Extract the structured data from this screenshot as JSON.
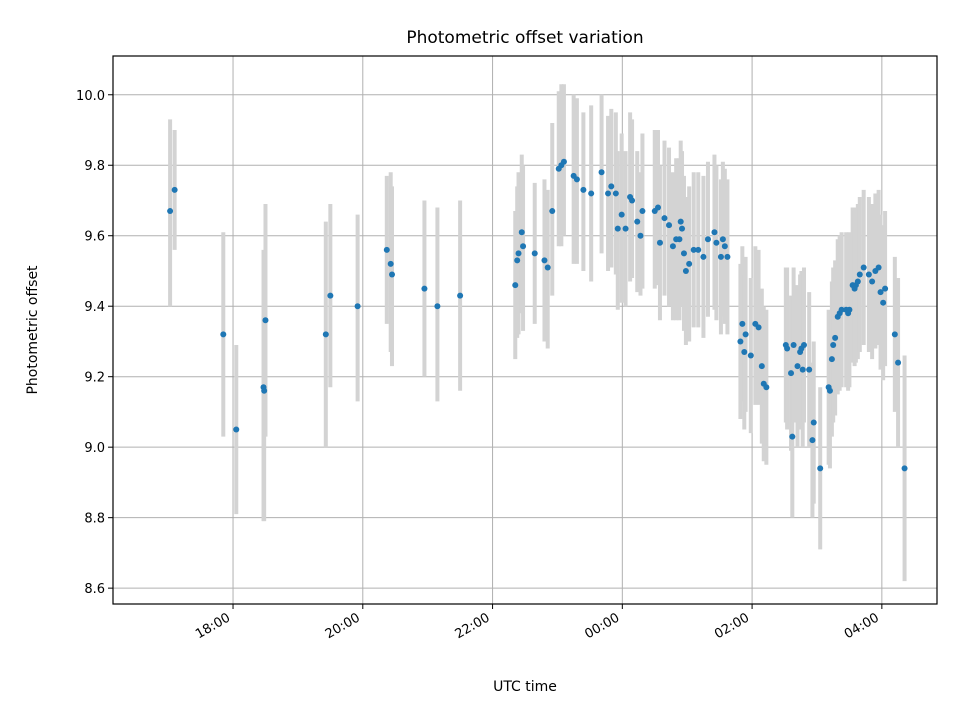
{
  "chart_data": {
    "type": "scatter",
    "title": "Photometric offset variation",
    "xlabel": "UTC time",
    "ylabel": "Photometric offset",
    "x_unit": "UTC, hours from 18:00 (values past 24 are after midnight)",
    "xlim": [
      16.15,
      28.85
    ],
    "ylim": [
      8.555,
      10.11
    ],
    "grid": true,
    "point_color": "#1f77b4",
    "errorbar_color": "#d3d3d3",
    "xticks": [
      {
        "value": 18,
        "label": "18:00"
      },
      {
        "value": 20,
        "label": "20:00"
      },
      {
        "value": 22,
        "label": "22:00"
      },
      {
        "value": 24,
        "label": "00:00"
      },
      {
        "value": 26,
        "label": "02:00"
      },
      {
        "value": 28,
        "label": "04:00"
      }
    ],
    "yticks": [
      {
        "value": 8.6,
        "label": "8.6"
      },
      {
        "value": 8.8,
        "label": "8.8"
      },
      {
        "value": 9.0,
        "label": "9.0"
      },
      {
        "value": 9.2,
        "label": "9.2"
      },
      {
        "value": 9.4,
        "label": "9.4"
      },
      {
        "value": 9.6,
        "label": "9.6"
      },
      {
        "value": 9.8,
        "label": "9.8"
      },
      {
        "value": 10.0,
        "label": "10.0"
      }
    ],
    "points": [
      [
        17.03,
        9.67,
        9.4,
        9.93
      ],
      [
        17.1,
        9.73,
        9.56,
        9.9
      ],
      [
        17.85,
        9.32,
        9.03,
        9.61
      ],
      [
        18.05,
        9.05,
        8.81,
        9.29
      ],
      [
        18.47,
        9.17,
        8.79,
        9.56
      ],
      [
        18.48,
        9.16,
        8.79,
        9.53
      ],
      [
        18.5,
        9.36,
        9.03,
        9.69
      ],
      [
        19.43,
        9.32,
        9.0,
        9.64
      ],
      [
        19.5,
        9.43,
        9.17,
        9.69
      ],
      [
        19.92,
        9.4,
        9.13,
        9.66
      ],
      [
        20.37,
        9.56,
        9.35,
        9.77
      ],
      [
        20.43,
        9.52,
        9.27,
        9.78
      ],
      [
        20.45,
        9.49,
        9.23,
        9.74
      ],
      [
        20.95,
        9.45,
        9.2,
        9.7
      ],
      [
        21.15,
        9.4,
        9.13,
        9.68
      ],
      [
        21.5,
        9.43,
        9.16,
        9.7
      ],
      [
        22.35,
        9.46,
        9.25,
        9.67
      ],
      [
        22.38,
        9.53,
        9.31,
        9.74
      ],
      [
        22.4,
        9.55,
        9.32,
        9.78
      ],
      [
        22.45,
        9.61,
        9.38,
        9.83
      ],
      [
        22.47,
        9.57,
        9.33,
        9.8
      ],
      [
        22.65,
        9.55,
        9.35,
        9.75
      ],
      [
        22.8,
        9.53,
        9.3,
        9.76
      ],
      [
        22.85,
        9.51,
        9.28,
        9.73
      ],
      [
        22.92,
        9.67,
        9.43,
        9.92
      ],
      [
        23.02,
        9.79,
        9.57,
        10.01
      ],
      [
        23.06,
        9.8,
        9.57,
        10.03
      ],
      [
        23.1,
        9.81,
        9.6,
        10.03
      ],
      [
        23.25,
        9.77,
        9.52,
        10.0
      ],
      [
        23.3,
        9.76,
        9.52,
        9.99
      ],
      [
        23.4,
        9.73,
        9.5,
        9.95
      ],
      [
        23.52,
        9.72,
        9.47,
        9.97
      ],
      [
        23.68,
        9.78,
        9.55,
        10.0
      ],
      [
        23.78,
        9.72,
        9.5,
        9.94
      ],
      [
        23.83,
        9.74,
        9.51,
        9.96
      ],
      [
        23.9,
        9.72,
        9.49,
        9.95
      ],
      [
        23.93,
        9.62,
        9.39,
        9.84
      ],
      [
        23.99,
        9.66,
        9.41,
        9.89
      ],
      [
        24.05,
        9.62,
        9.4,
        9.84
      ],
      [
        24.12,
        9.71,
        9.47,
        9.95
      ],
      [
        24.15,
        9.7,
        9.48,
        9.93
      ],
      [
        24.23,
        9.64,
        9.44,
        9.84
      ],
      [
        24.28,
        9.6,
        9.43,
        9.78
      ],
      [
        24.31,
        9.67,
        9.45,
        9.89
      ],
      [
        24.5,
        9.67,
        9.45,
        9.9
      ],
      [
        24.55,
        9.68,
        9.46,
        9.9
      ],
      [
        24.58,
        9.58,
        9.36,
        9.8
      ],
      [
        24.65,
        9.65,
        9.43,
        9.87
      ],
      [
        24.72,
        9.63,
        9.4,
        9.85
      ],
      [
        24.78,
        9.57,
        9.36,
        9.78
      ],
      [
        24.83,
        9.59,
        9.36,
        9.82
      ],
      [
        24.88,
        9.59,
        9.36,
        9.82
      ],
      [
        24.9,
        9.64,
        9.4,
        9.87
      ],
      [
        24.92,
        9.62,
        9.4,
        9.84
      ],
      [
        24.95,
        9.55,
        9.33,
        9.77
      ],
      [
        24.98,
        9.5,
        9.29,
        9.71
      ],
      [
        25.03,
        9.52,
        9.3,
        9.74
      ],
      [
        25.1,
        9.56,
        9.34,
        9.78
      ],
      [
        25.17,
        9.56,
        9.34,
        9.78
      ],
      [
        25.25,
        9.54,
        9.31,
        9.77
      ],
      [
        25.32,
        9.59,
        9.37,
        9.81
      ],
      [
        25.42,
        9.61,
        9.39,
        9.83
      ],
      [
        25.45,
        9.58,
        9.36,
        9.8
      ],
      [
        25.52,
        9.54,
        9.32,
        9.76
      ],
      [
        25.55,
        9.59,
        9.37,
        9.81
      ],
      [
        25.58,
        9.57,
        9.35,
        9.79
      ],
      [
        25.62,
        9.54,
        9.32,
        9.76
      ],
      [
        25.82,
        9.3,
        9.08,
        9.52
      ],
      [
        25.85,
        9.35,
        9.13,
        9.57
      ],
      [
        25.88,
        9.27,
        9.05,
        9.49
      ],
      [
        25.9,
        9.32,
        9.1,
        9.54
      ],
      [
        25.98,
        9.26,
        9.04,
        9.48
      ],
      [
        26.05,
        9.35,
        9.12,
        9.57
      ],
      [
        26.1,
        9.34,
        9.12,
        9.56
      ],
      [
        26.15,
        9.23,
        9.01,
        9.45
      ],
      [
        26.18,
        9.18,
        8.96,
        9.4
      ],
      [
        26.22,
        9.17,
        8.95,
        9.39
      ],
      [
        26.52,
        9.29,
        9.07,
        9.51
      ],
      [
        26.54,
        9.28,
        9.05,
        9.51
      ],
      [
        26.6,
        9.21,
        8.99,
        9.43
      ],
      [
        26.62,
        9.03,
        8.8,
        9.26
      ],
      [
        26.64,
        9.29,
        9.07,
        9.51
      ],
      [
        26.7,
        9.23,
        9.0,
        9.46
      ],
      [
        26.74,
        9.27,
        9.05,
        9.49
      ],
      [
        26.76,
        9.28,
        9.06,
        9.5
      ],
      [
        26.78,
        9.22,
        9.0,
        9.44
      ],
      [
        26.8,
        9.29,
        9.07,
        9.51
      ],
      [
        26.88,
        9.22,
        9.0,
        9.44
      ],
      [
        26.93,
        9.02,
        8.8,
        9.24
      ],
      [
        26.95,
        9.07,
        8.84,
        9.3
      ],
      [
        27.05,
        8.94,
        8.71,
        9.17
      ],
      [
        27.18,
        9.17,
        8.95,
        9.39
      ],
      [
        27.2,
        9.16,
        8.94,
        9.38
      ],
      [
        27.23,
        9.25,
        9.03,
        9.47
      ],
      [
        27.25,
        9.29,
        9.07,
        9.51
      ],
      [
        27.28,
        9.31,
        9.09,
        9.53
      ],
      [
        27.32,
        9.37,
        9.15,
        9.59
      ],
      [
        27.35,
        9.38,
        9.16,
        9.6
      ],
      [
        27.38,
        9.39,
        9.17,
        9.61
      ],
      [
        27.45,
        9.39,
        9.17,
        9.61
      ],
      [
        27.48,
        9.38,
        9.16,
        9.6
      ],
      [
        27.5,
        9.39,
        9.17,
        9.61
      ],
      [
        27.55,
        9.46,
        9.24,
        9.68
      ],
      [
        27.58,
        9.45,
        9.23,
        9.67
      ],
      [
        27.6,
        9.46,
        9.24,
        9.68
      ],
      [
        27.63,
        9.47,
        9.25,
        9.69
      ],
      [
        27.66,
        9.49,
        9.27,
        9.71
      ],
      [
        27.72,
        9.51,
        9.29,
        9.73
      ],
      [
        27.8,
        9.49,
        9.27,
        9.71
      ],
      [
        27.85,
        9.47,
        9.25,
        9.69
      ],
      [
        27.9,
        9.5,
        9.28,
        9.72
      ],
      [
        27.95,
        9.51,
        9.29,
        9.73
      ],
      [
        27.98,
        9.44,
        9.22,
        9.66
      ],
      [
        28.02,
        9.41,
        9.19,
        9.63
      ],
      [
        28.05,
        9.45,
        9.23,
        9.67
      ],
      [
        28.2,
        9.32,
        9.1,
        9.54
      ],
      [
        28.25,
        9.24,
        9.0,
        9.48
      ],
      [
        28.35,
        8.94,
        8.62,
        9.26
      ]
    ]
  }
}
